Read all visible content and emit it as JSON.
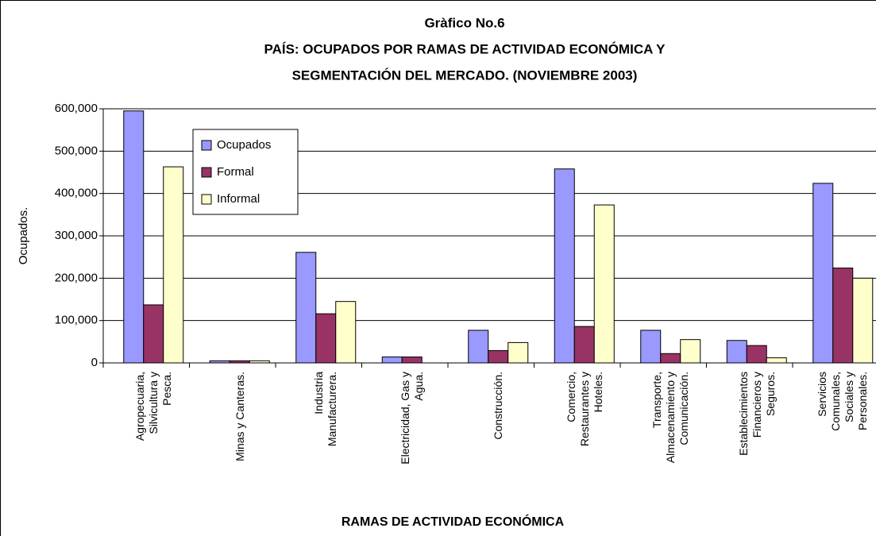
{
  "chart_data": {
    "type": "bar",
    "title": [
      "Gràfico No.6",
      "PAÍS: OCUPADOS POR RAMAS DE ACTIVIDAD ECONÓMICA Y",
      "SEGMENTACIÓN DEL MERCADO. (NOVIEMBRE 2003)"
    ],
    "y_label": "Ocupados.",
    "x_label": "RAMAS DE ACTIVIDAD ECONÓMICA",
    "categories": [
      "Agropecuaria, Silvicultura y Pesca.",
      "Minas y Canteras.",
      "Industria Manufacturera.",
      "Electricidad, Gas y Agua.",
      "Construcción.",
      "Comercio, Restaurantes y Hoteles.",
      "Transporte, Almacenamiento y Comunicación.",
      "Establecimientos Financieros y Seguros.",
      "Servicios Comunales, Sociales y Personales."
    ],
    "series": [
      {
        "name": "Ocupados",
        "color": "#9999ff",
        "values": [
          595000,
          5000,
          261000,
          14000,
          77000,
          458000,
          77000,
          53000,
          424000
        ]
      },
      {
        "name": "Formal",
        "color": "#993366",
        "values": [
          137000,
          5000,
          116000,
          14000,
          29000,
          86000,
          22000,
          41000,
          224000
        ]
      },
      {
        "name": "Informal",
        "color": "#ffffcc",
        "values": [
          463000,
          5000,
          145000,
          0,
          48000,
          373000,
          55000,
          12000,
          200000
        ]
      }
    ],
    "ylim": [
      0,
      600000
    ],
    "yticks": [
      0,
      {
        "value": 100000,
        "label": "100,000"
      },
      {
        "value": 200000,
        "label": "200,000"
      },
      {
        "value": 300000,
        "label": "300,000"
      },
      {
        "value": 400000,
        "label": "400,000"
      },
      {
        "value": 500000,
        "label": "500,000"
      },
      {
        "value": 600000,
        "label": "600,000"
      }
    ],
    "grid": true,
    "legend": "upper left"
  }
}
